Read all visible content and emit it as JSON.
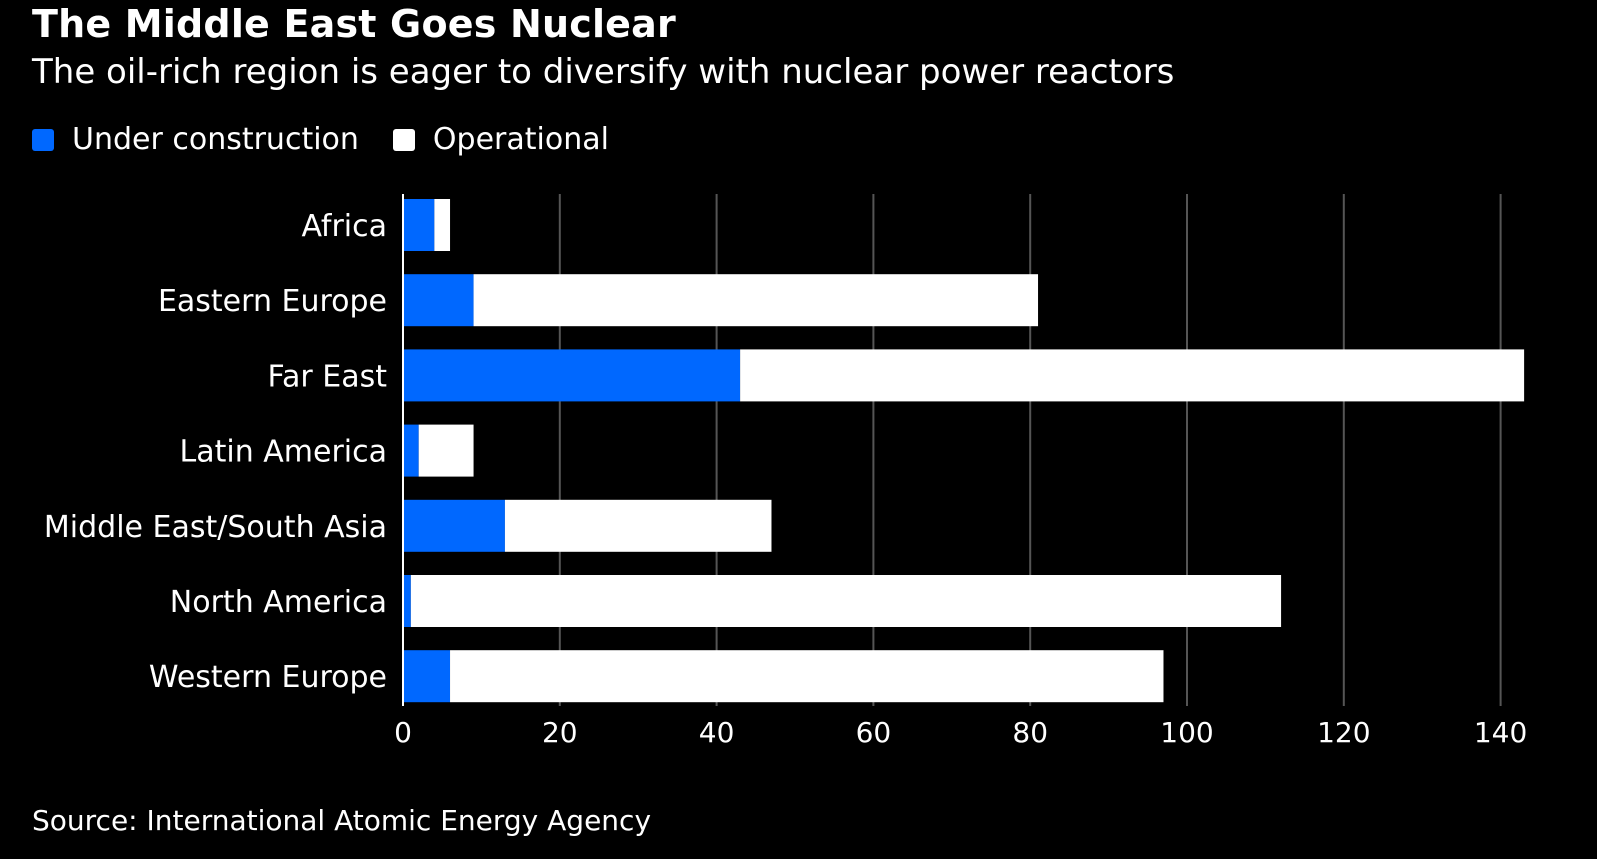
{
  "title": "The Middle East Goes Nuclear",
  "subtitle": "The oil-rich region is eager to diversify with nuclear power reactors",
  "source": "Source: International Atomic Energy Agency",
  "colors": {
    "background": "#000000",
    "under_construction": "#0068ff",
    "operational": "#ffffff",
    "grid": "#555555",
    "text": "#ffffff"
  },
  "chart_data": {
    "type": "bar",
    "orientation": "horizontal",
    "stacked": true,
    "categories": [
      "Africa",
      "Eastern Europe",
      "Far East",
      "Latin America",
      "Middle East/South Asia",
      "North America",
      "Western Europe"
    ],
    "series": [
      {
        "name": "Under construction",
        "values": [
          4,
          9,
          43,
          2,
          13,
          1,
          6
        ]
      },
      {
        "name": "Operational",
        "values": [
          2,
          72,
          100,
          7,
          34,
          111,
          91
        ]
      }
    ],
    "xticks": [
      0,
      20,
      40,
      60,
      80,
      100,
      120,
      140
    ],
    "xlim": [
      0,
      145
    ],
    "grid": true,
    "legend_position": "top-left"
  }
}
